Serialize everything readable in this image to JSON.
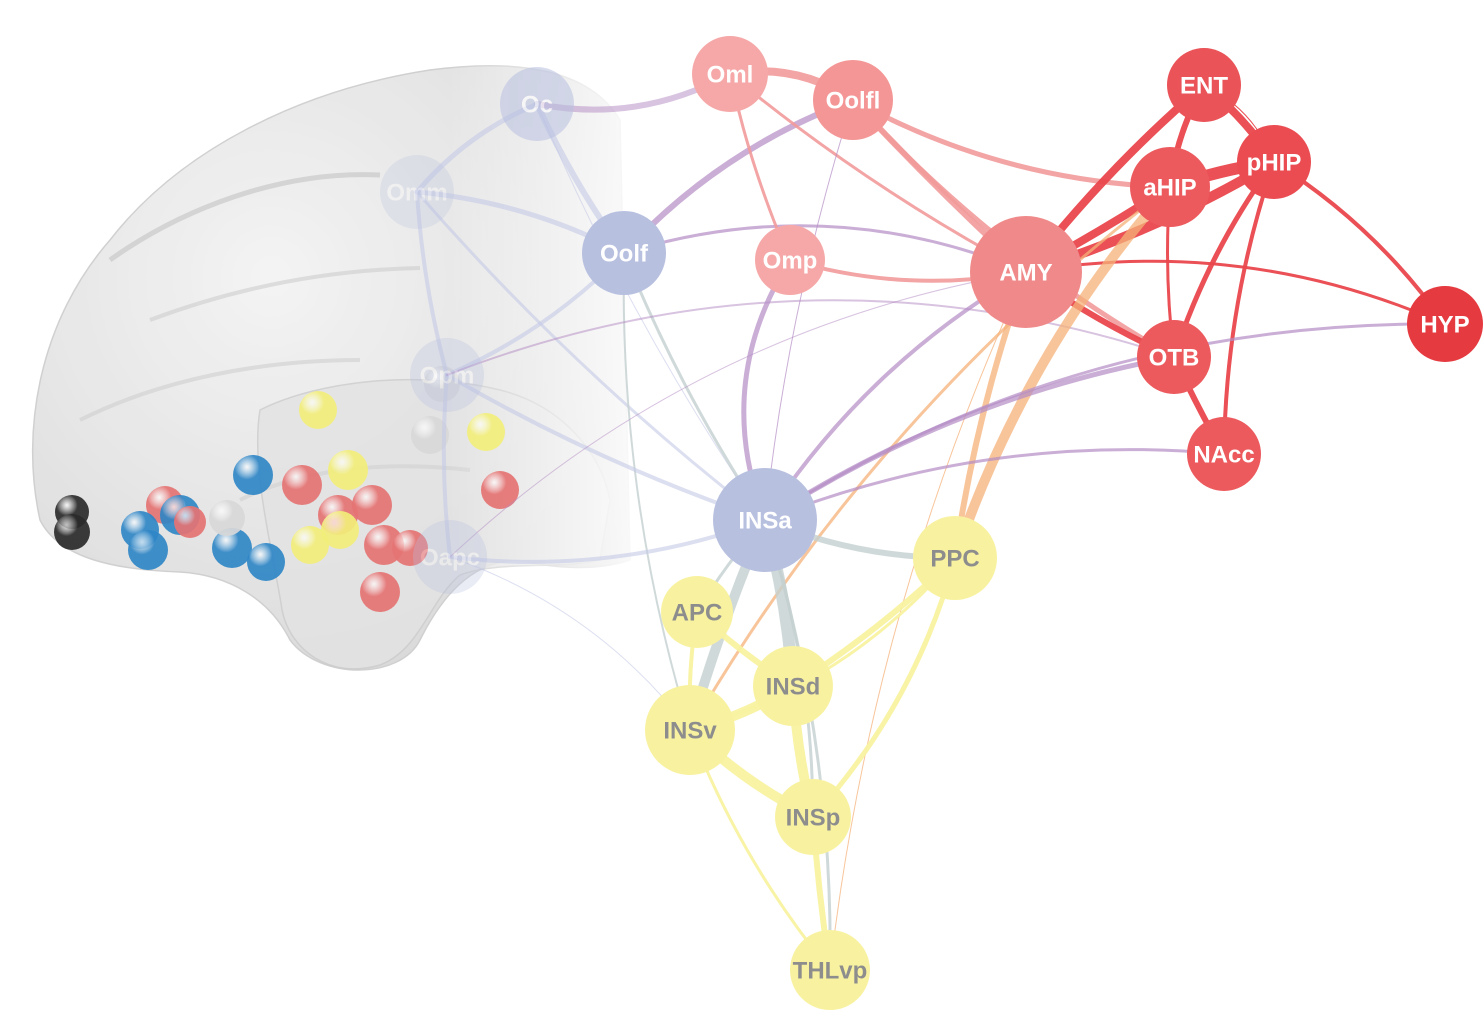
{
  "colors": {
    "red": "#e9474c",
    "pink": "#f5a0a0",
    "lavender": "#b8c0e0",
    "purple": "#b07ab8",
    "orange": "#f6b27a",
    "yellow": "#f8f2a0",
    "gray_edge": "#c4cfd0",
    "brain_fill": "#e6e6e6",
    "sphere_blue": "#2f86c6",
    "sphere_red": "#e57373",
    "sphere_yellow": "#f2ee7a",
    "sphere_white": "#d8d8d8",
    "sphere_dark": "#2a2a2a"
  },
  "nodes": [
    {
      "id": "Oc",
      "label": "Oc",
      "group": "lavender"
    },
    {
      "id": "Omm",
      "label": "Omm",
      "group": "lavender"
    },
    {
      "id": "Oolf",
      "label": "Oolf",
      "group": "lavender"
    },
    {
      "id": "Opm",
      "label": "Opm",
      "group": "lavender"
    },
    {
      "id": "Oapc",
      "label": "Oapc",
      "group": "lavender"
    },
    {
      "id": "INSa",
      "label": "INSa",
      "group": "lavender"
    },
    {
      "id": "Oml",
      "label": "Oml",
      "group": "pink"
    },
    {
      "id": "Oolfl",
      "label": "Oolfl",
      "group": "pink"
    },
    {
      "id": "Omp",
      "label": "Omp",
      "group": "pink"
    },
    {
      "id": "AMY",
      "label": "AMY",
      "group": "pink"
    },
    {
      "id": "ENT",
      "label": "ENT",
      "group": "red"
    },
    {
      "id": "pHIP",
      "label": "pHIP",
      "group": "red"
    },
    {
      "id": "aHIP",
      "label": "aHIP",
      "group": "red"
    },
    {
      "id": "OTB",
      "label": "OTB",
      "group": "red"
    },
    {
      "id": "NAcc",
      "label": "NAcc",
      "group": "red"
    },
    {
      "id": "HYP",
      "label": "HYP",
      "group": "red"
    },
    {
      "id": "PPC",
      "label": "PPC",
      "group": "yellow"
    },
    {
      "id": "APC",
      "label": "APC",
      "group": "yellow"
    },
    {
      "id": "INSd",
      "label": "INSd",
      "group": "yellow"
    },
    {
      "id": "INSv",
      "label": "INSv",
      "group": "yellow"
    },
    {
      "id": "INSp",
      "label": "INSp",
      "group": "yellow"
    },
    {
      "id": "THLvp",
      "label": "THLvp",
      "group": "yellow"
    }
  ],
  "edges": [
    {
      "from": "Oc",
      "to": "Oml",
      "color": "purple",
      "weight": 6
    },
    {
      "from": "Oc",
      "to": "Omm",
      "color": "lavender",
      "weight": 5
    },
    {
      "from": "Oc",
      "to": "Oolf",
      "color": "lavender",
      "weight": 6
    },
    {
      "from": "Oc",
      "to": "INSa",
      "color": "lavender",
      "weight": 1
    },
    {
      "from": "Omm",
      "to": "Oolf",
      "color": "lavender",
      "weight": 5
    },
    {
      "from": "Omm",
      "to": "Opm",
      "color": "lavender",
      "weight": 4
    },
    {
      "from": "Omm",
      "to": "INSa",
      "color": "lavender",
      "weight": 3
    },
    {
      "from": "Oolf",
      "to": "Oolfl",
      "color": "purple",
      "weight": 6
    },
    {
      "from": "Oolf",
      "to": "AMY",
      "color": "purple",
      "weight": 3
    },
    {
      "from": "Oolf",
      "to": "Opm",
      "color": "lavender",
      "weight": 4
    },
    {
      "from": "Oolf",
      "to": "INSa",
      "color": "gray_edge",
      "weight": 3
    },
    {
      "from": "Oolf",
      "to": "INSv",
      "color": "gray_edge",
      "weight": 2
    },
    {
      "from": "Opm",
      "to": "Oapc",
      "color": "lavender",
      "weight": 4
    },
    {
      "from": "Opm",
      "to": "INSa",
      "color": "lavender",
      "weight": 4
    },
    {
      "from": "Opm",
      "to": "OTB",
      "color": "purple",
      "weight": 2
    },
    {
      "from": "Oapc",
      "to": "INSa",
      "color": "lavender",
      "weight": 4
    },
    {
      "from": "Oapc",
      "to": "INSv",
      "color": "lavender",
      "weight": 1
    },
    {
      "from": "Oapc",
      "to": "AMY",
      "color": "purple",
      "weight": 1
    },
    {
      "from": "Oml",
      "to": "Oolfl",
      "color": "pink",
      "weight": 8
    },
    {
      "from": "Oml",
      "to": "Omp",
      "color": "pink",
      "weight": 3
    },
    {
      "from": "Oml",
      "to": "AMY",
      "color": "pink",
      "weight": 3
    },
    {
      "from": "Oolfl",
      "to": "INSa",
      "color": "purple",
      "weight": 1
    },
    {
      "from": "Oolfl",
      "to": "AMY",
      "color": "pink",
      "weight": 6
    },
    {
      "from": "Oolfl",
      "to": "aHIP",
      "color": "pink",
      "weight": 5
    },
    {
      "from": "Oolfl",
      "to": "OTB",
      "color": "pink",
      "weight": 5
    },
    {
      "from": "Omp",
      "to": "INSa",
      "color": "purple",
      "weight": 5
    },
    {
      "from": "Omp",
      "to": "AMY",
      "color": "pink",
      "weight": 4
    },
    {
      "from": "AMY",
      "to": "ENT",
      "color": "red",
      "weight": 8
    },
    {
      "from": "AMY",
      "to": "aHIP",
      "color": "red",
      "weight": 8
    },
    {
      "from": "AMY",
      "to": "pHIP",
      "color": "red",
      "weight": 10
    },
    {
      "from": "AMY",
      "to": "OTB",
      "color": "red",
      "weight": 6
    },
    {
      "from": "AMY",
      "to": "HYP",
      "color": "red",
      "weight": 3
    },
    {
      "from": "AMY",
      "to": "INSa",
      "color": "purple",
      "weight": 4
    },
    {
      "from": "AMY",
      "to": "PPC",
      "color": "orange",
      "weight": 6
    },
    {
      "from": "AMY",
      "to": "THLvp",
      "color": "orange",
      "weight": 1
    },
    {
      "from": "ENT",
      "to": "aHIP",
      "color": "red",
      "weight": 6
    },
    {
      "from": "ENT",
      "to": "pHIP",
      "color": "red",
      "weight": 8
    },
    {
      "from": "aHIP",
      "to": "pHIP",
      "color": "red",
      "weight": 12
    },
    {
      "from": "aHIP",
      "to": "OTB",
      "color": "red",
      "weight": 3
    },
    {
      "from": "aHIP",
      "to": "PPC",
      "color": "orange",
      "weight": 10
    },
    {
      "from": "aHIP",
      "to": "INSv",
      "color": "orange",
      "weight": 3
    },
    {
      "from": "pHIP",
      "to": "OTB",
      "color": "red",
      "weight": 5
    },
    {
      "from": "pHIP",
      "to": "NAcc",
      "color": "red",
      "weight": 4
    },
    {
      "from": "pHIP",
      "to": "HYP",
      "color": "red",
      "weight": 4
    },
    {
      "from": "pHIP",
      "to": "ENT",
      "color": "red",
      "weight": 1
    },
    {
      "from": "OTB",
      "to": "NAcc",
      "color": "red",
      "weight": 6
    },
    {
      "from": "OTB",
      "to": "INSa",
      "color": "purple",
      "weight": 5
    },
    {
      "from": "NAcc",
      "to": "INSa",
      "color": "purple",
      "weight": 3
    },
    {
      "from": "HYP",
      "to": "INSa",
      "color": "purple",
      "weight": 3
    },
    {
      "from": "INSa",
      "to": "PPC",
      "color": "gray_edge",
      "weight": 6
    },
    {
      "from": "INSa",
      "to": "INSv",
      "color": "gray_edge",
      "weight": 10
    },
    {
      "from": "INSa",
      "to": "INSd",
      "color": "gray_edge",
      "weight": 12
    },
    {
      "from": "INSa",
      "to": "INSp",
      "color": "gray_edge",
      "weight": 3
    },
    {
      "from": "INSa",
      "to": "THLvp",
      "color": "gray_edge",
      "weight": 3
    },
    {
      "from": "INSa",
      "to": "APC",
      "color": "gray_edge",
      "weight": 3
    },
    {
      "from": "APC",
      "to": "INSd",
      "color": "yellow",
      "weight": 6
    },
    {
      "from": "APC",
      "to": "INSv",
      "color": "yellow",
      "weight": 4
    },
    {
      "from": "INSd",
      "to": "INSv",
      "color": "yellow",
      "weight": 10
    },
    {
      "from": "INSd",
      "to": "INSp",
      "color": "yellow",
      "weight": 10
    },
    {
      "from": "INSd",
      "to": "PPC",
      "color": "yellow",
      "weight": 6
    },
    {
      "from": "INSv",
      "to": "INSp",
      "color": "yellow",
      "weight": 10
    },
    {
      "from": "INSv",
      "to": "THLvp",
      "color": "yellow",
      "weight": 3
    },
    {
      "from": "INSp",
      "to": "THLvp",
      "color": "yellow",
      "weight": 6
    },
    {
      "from": "PPC",
      "to": "INSp",
      "color": "yellow",
      "weight": 5
    },
    {
      "from": "PPC",
      "to": "INSv",
      "color": "yellow",
      "weight": 3
    }
  ],
  "spheres": [
    {
      "color": "sphere_yellow"
    },
    {
      "color": "sphere_white"
    },
    {
      "color": "sphere_white"
    },
    {
      "color": "sphere_yellow"
    },
    {
      "color": "sphere_yellow"
    },
    {
      "color": "sphere_blue"
    },
    {
      "color": "sphere_red"
    },
    {
      "color": "sphere_red"
    },
    {
      "color": "sphere_red"
    },
    {
      "color": "sphere_red"
    },
    {
      "color": "sphere_red"
    },
    {
      "color": "sphere_red"
    },
    {
      "color": "sphere_red"
    },
    {
      "color": "sphere_yellow"
    },
    {
      "color": "sphere_yellow"
    },
    {
      "color": "sphere_blue"
    },
    {
      "color": "sphere_blue"
    },
    {
      "color": "sphere_blue"
    },
    {
      "color": "sphere_blue"
    },
    {
      "color": "sphere_blue"
    },
    {
      "color": "sphere_red"
    },
    {
      "color": "sphere_white"
    },
    {
      "color": "sphere_dark"
    },
    {
      "color": "sphere_dark"
    },
    {
      "color": "sphere_red"
    }
  ]
}
